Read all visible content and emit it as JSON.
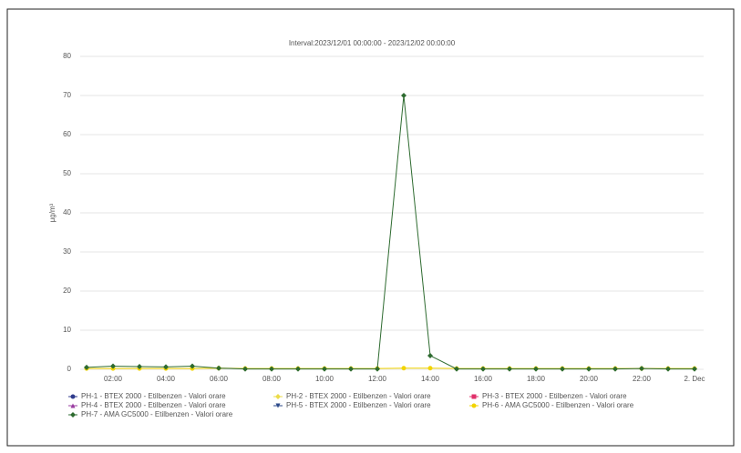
{
  "chart_data": {
    "type": "line",
    "title": "Interval:2023/12/01 00:00:00 - 2023/12/02 00:00:00",
    "y_label": "µg/m³",
    "categories": [
      null,
      "02:00",
      null,
      "04:00",
      null,
      "06:00",
      null,
      "08:00",
      null,
      "10:00",
      null,
      "12:00",
      null,
      "14:00",
      null,
      "16:00",
      null,
      "18:00",
      null,
      "20:00",
      null,
      "22:00",
      null,
      "2. Dec"
    ],
    "ylim": [
      0,
      80
    ],
    "yticks": [
      0,
      10,
      20,
      30,
      40,
      50,
      60,
      70,
      80
    ],
    "grid": true,
    "legend": "bottom",
    "series": [
      {
        "name": "PH-1 - BTEX 2000 - Etilbenzen - Valori orare",
        "color": "#2f3b8c",
        "marker": "circle",
        "values": [
          null,
          null,
          null,
          null,
          null,
          null,
          null,
          null,
          null,
          null,
          null,
          null,
          null,
          null,
          null,
          null,
          null,
          null,
          null,
          null,
          null,
          null,
          null,
          null
        ]
      },
      {
        "name": "PH-2 - BTEX 2000 - Etilbenzen - Valori orare",
        "color": "#ecdc4a",
        "marker": "diamond",
        "values": [
          null,
          null,
          null,
          null,
          null,
          null,
          null,
          null,
          null,
          null,
          null,
          null,
          null,
          null,
          null,
          null,
          null,
          null,
          null,
          null,
          null,
          null,
          null,
          null
        ]
      },
      {
        "name": "PH-3 - BTEX 2000 - Etilbenzen - Valori orare",
        "color": "#e0306a",
        "marker": "square",
        "values": [
          null,
          null,
          null,
          null,
          null,
          null,
          null,
          null,
          null,
          null,
          null,
          null,
          null,
          null,
          null,
          null,
          null,
          null,
          null,
          null,
          null,
          null,
          null,
          null
        ]
      },
      {
        "name": "PH-4 - BTEX 2000 - Etilbenzen - Valori orare",
        "color": "#9a3ca0",
        "marker": "triangle",
        "values": [
          null,
          null,
          null,
          null,
          null,
          null,
          null,
          null,
          null,
          null,
          null,
          null,
          null,
          null,
          null,
          null,
          null,
          null,
          null,
          null,
          null,
          null,
          null,
          null
        ]
      },
      {
        "name": "PH-5 - BTEX 2000 - Etilbenzen - Valori orare",
        "color": "#2c4a8a",
        "marker": "triangle-down",
        "values": [
          null,
          null,
          null,
          null,
          null,
          null,
          null,
          null,
          null,
          null,
          null,
          null,
          null,
          null,
          null,
          null,
          null,
          null,
          null,
          null,
          null,
          null,
          null,
          null
        ]
      },
      {
        "name": "PH-6 - AMA GC5000 - Etilbenzen - Valori orare",
        "color": "#f2d400",
        "marker": "circle",
        "values": [
          0.2,
          0.2,
          0.2,
          0.2,
          0.2,
          0.3,
          0.2,
          0.2,
          0.2,
          0.2,
          0.2,
          0.2,
          0.3,
          0.3,
          0.2,
          0.2,
          0.2,
          0.2,
          0.2,
          0.2,
          0.2,
          0.2,
          0.2,
          0.2
        ]
      },
      {
        "name": "PH-7 - AMA GC5000 - Etilbenzen - Valori orare",
        "color": "#2e6b30",
        "marker": "diamond",
        "values": [
          0.5,
          0.8,
          0.7,
          0.6,
          0.8,
          0.3,
          0.1,
          0.1,
          0.1,
          0.1,
          0.1,
          0.1,
          70,
          3.5,
          0.1,
          0.1,
          0.1,
          0.1,
          0.1,
          0.1,
          0.1,
          0.2,
          0.1,
          0.1
        ]
      }
    ]
  }
}
